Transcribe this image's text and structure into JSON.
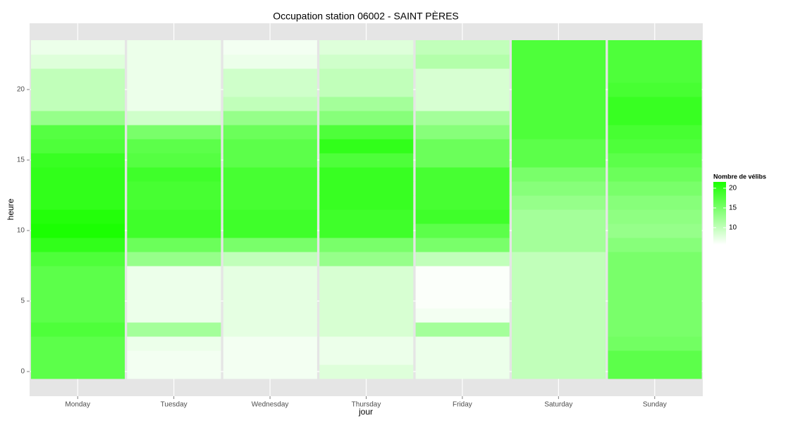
{
  "chart_data": {
    "type": "heatmap",
    "title": "Occupation station 06002 - SAINT PÈRES",
    "x_label": "jour",
    "y_label": "heure",
    "categories": [
      "Monday",
      "Tuesday",
      "Wednesday",
      "Thursday",
      "Friday",
      "Saturday",
      "Sunday"
    ],
    "hours": [
      0,
      1,
      2,
      3,
      4,
      5,
      6,
      7,
      8,
      9,
      10,
      11,
      12,
      13,
      14,
      15,
      16,
      17,
      18,
      19,
      20,
      21,
      22,
      23
    ],
    "values": [
      [
        17,
        17,
        17,
        18,
        17,
        17,
        17,
        17,
        18,
        20,
        21.5,
        21,
        20,
        20,
        20,
        19.5,
        18,
        17.5,
        13,
        10,
        10,
        10,
        8,
        7
      ],
      [
        6.5,
        6.5,
        7,
        12,
        7,
        7,
        7,
        7,
        13,
        16,
        19,
        19,
        18.5,
        18.5,
        19,
        17.5,
        17,
        15,
        9,
        7,
        7,
        7,
        7,
        7
      ],
      [
        6.5,
        6.5,
        6.5,
        7.5,
        7.5,
        7.5,
        7.5,
        7.5,
        10,
        15,
        19,
        19,
        18.5,
        18.5,
        18.5,
        17,
        17,
        16,
        13,
        10,
        9,
        9,
        7,
        6.5
      ],
      [
        8,
        7,
        7,
        8.5,
        8.5,
        8.5,
        8.5,
        8.5,
        13,
        15,
        19,
        19,
        19.5,
        19.5,
        19.5,
        18,
        20,
        18,
        14,
        12,
        10,
        10,
        9,
        8
      ],
      [
        7,
        7,
        7,
        12,
        6.5,
        6,
        6,
        6,
        10,
        15,
        17,
        19,
        18.5,
        18.5,
        18.5,
        16,
        16,
        14,
        12,
        8.5,
        8.5,
        8.5,
        11,
        10
      ],
      [
        10,
        10,
        10,
        10,
        10,
        10,
        10,
        10,
        10,
        12,
        12,
        12,
        13,
        14,
        15,
        17,
        17,
        18,
        18,
        18,
        18,
        18,
        18,
        18
      ],
      [
        17,
        17,
        15.5,
        15,
        15,
        15,
        15,
        15,
        15,
        14,
        13,
        13.5,
        14,
        15,
        16,
        17,
        18,
        18.5,
        19.5,
        19.5,
        18.5,
        18,
        18,
        18
      ]
    ],
    "ylim": [
      -1.75,
      24.7
    ],
    "yticks": [
      0,
      5,
      10,
      15,
      20
    ],
    "grid": true,
    "legend": {
      "title": "Nombre de vélibs",
      "position": "right",
      "ticks": [
        10,
        15,
        20
      ]
    },
    "colorscale": {
      "low": "#ffffff",
      "high": "#1aff00",
      "limits": [
        5.7,
        21.6
      ]
    }
  }
}
